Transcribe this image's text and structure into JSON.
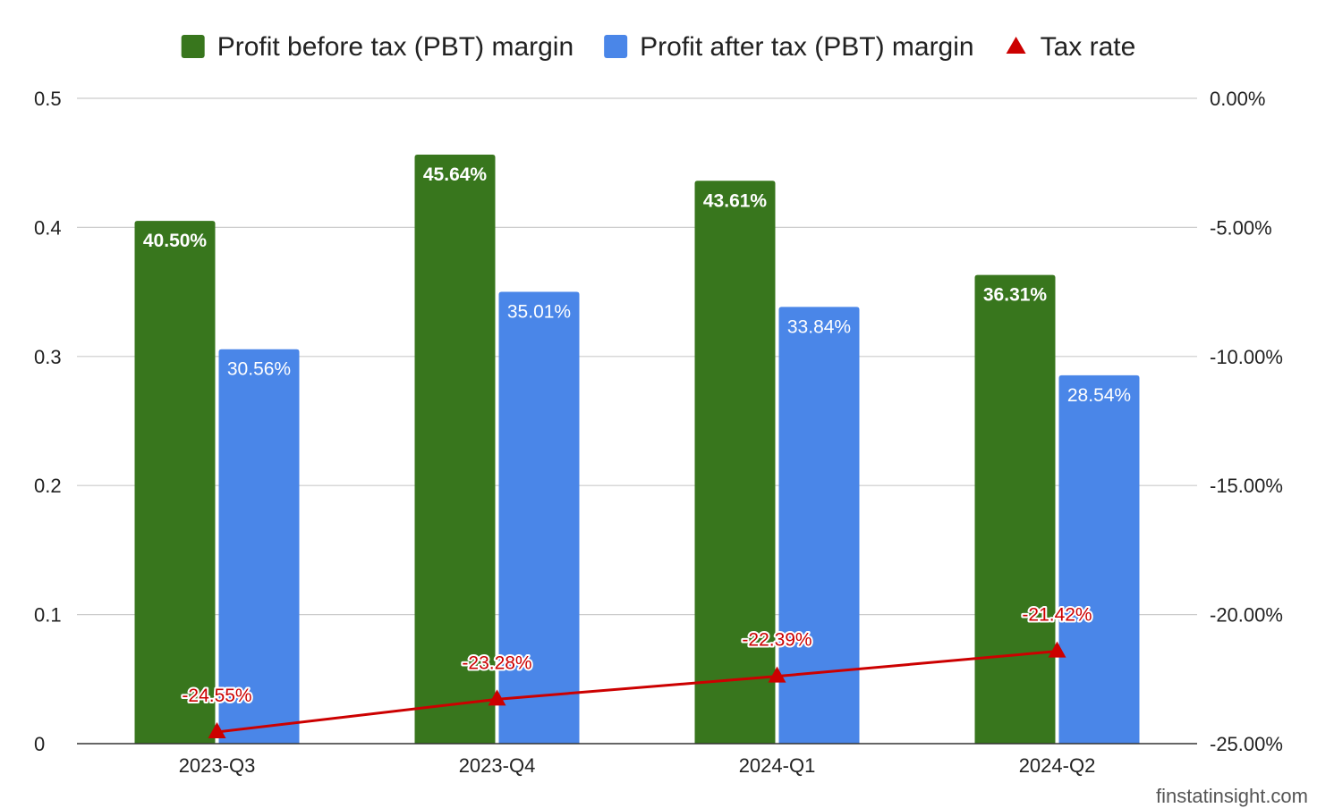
{
  "chart_data": {
    "type": "bar",
    "categories": [
      "2023-Q3",
      "2023-Q4",
      "2024-Q1",
      "2024-Q2"
    ],
    "series": [
      {
        "name": "Profit before tax (PBT) margin",
        "axis": "left",
        "color": "#38761d",
        "values": [
          0.405,
          0.4564,
          0.4361,
          0.3631
        ],
        "labels": [
          "40.50%",
          "45.64%",
          "43.61%",
          "36.31%"
        ],
        "label_color": "#ffffff",
        "label_bold": true
      },
      {
        "name": "Profit after tax (PBT) margin",
        "axis": "left",
        "color": "#4a86e8",
        "values": [
          0.3056,
          0.3501,
          0.3384,
          0.2854
        ],
        "labels": [
          "30.56%",
          "35.01%",
          "33.84%",
          "28.54%"
        ],
        "label_color": "#ffffff",
        "label_bold": false
      },
      {
        "name": "Tax rate",
        "axis": "right",
        "type": "line",
        "marker": "triangle",
        "color": "#cc0000",
        "values": [
          -24.55,
          -23.28,
          -22.39,
          -21.42
        ],
        "labels": [
          "-24.55%",
          "-23.28%",
          "-22.39%",
          "-21.42%"
        ]
      }
    ],
    "y_left": {
      "ylim": [
        0,
        0.5
      ],
      "ticks": [
        0,
        0.1,
        0.2,
        0.3,
        0.4,
        0.5
      ],
      "tick_labels": [
        "0",
        "0.1",
        "0.2",
        "0.3",
        "0.4",
        "0.5"
      ]
    },
    "y_right": {
      "ylim": [
        -25,
        0
      ],
      "ticks": [
        -25,
        -20,
        -15,
        -10,
        -5,
        0
      ],
      "tick_labels": [
        "-25.00%",
        "-20.00%",
        "-15.00%",
        "-10.00%",
        "-5.00%",
        "0.00%"
      ]
    },
    "grid": true,
    "legend": "top-center"
  },
  "watermark": "finstatinsight.com"
}
